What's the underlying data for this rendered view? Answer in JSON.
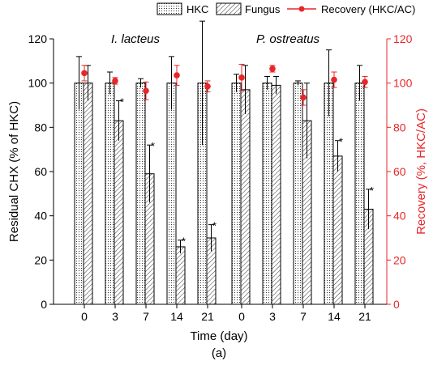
{
  "chart_data": {
    "type": "bar",
    "title": "",
    "xlabel": "Time (day)",
    "ylabel": "Residual CHX (% of HKC)",
    "y2label": "Recovery (%, HKC/AC)",
    "caption": "(a)",
    "ylim": [
      0,
      120
    ],
    "y2lim": [
      0,
      120
    ],
    "yticks": [
      0,
      20,
      40,
      60,
      80,
      100,
      120
    ],
    "legend_position": "top-right",
    "groups": [
      {
        "name": "I. lacteus",
        "categories": [
          "0",
          "3",
          "7",
          "14",
          "21"
        ],
        "hkc": [
          100,
          100,
          100,
          100,
          100
        ],
        "hkc_err": [
          12,
          5,
          2,
          12,
          28
        ],
        "fungus": [
          100,
          83,
          59,
          26,
          30
        ],
        "fungus_err": [
          8,
          9,
          13,
          3,
          6
        ],
        "recovery": [
          104.5,
          101,
          96.5,
          103.5,
          98.5
        ],
        "recovery_err": [
          3.5,
          1.5,
          4,
          4.5,
          2.5
        ],
        "significant": [
          false,
          true,
          true,
          true,
          true
        ]
      },
      {
        "name": "P. ostreatus",
        "categories": [
          "0",
          "3",
          "7",
          "14",
          "21"
        ],
        "hkc": [
          100,
          100,
          100,
          100,
          100
        ],
        "hkc_err": [
          4,
          3,
          1,
          15,
          8
        ],
        "fungus": [
          97,
          99,
          83,
          67,
          43
        ],
        "fungus_err": [
          11,
          4,
          17,
          7,
          9
        ],
        "recovery": [
          102.5,
          106.5,
          93.5,
          101.5,
          100.5
        ],
        "recovery_err": [
          6,
          1.5,
          3.5,
          3.5,
          2.5
        ],
        "significant": [
          false,
          false,
          false,
          true,
          true
        ]
      }
    ],
    "series": [
      {
        "name": "HKC",
        "pattern": "dotted",
        "color": "#000000"
      },
      {
        "name": "Fungus",
        "pattern": "hatched",
        "color": "#000000"
      },
      {
        "name": "Recovery (HKC/AC)",
        "marker": "circle",
        "color": "#e8262a"
      }
    ],
    "significance_marker": "*"
  }
}
